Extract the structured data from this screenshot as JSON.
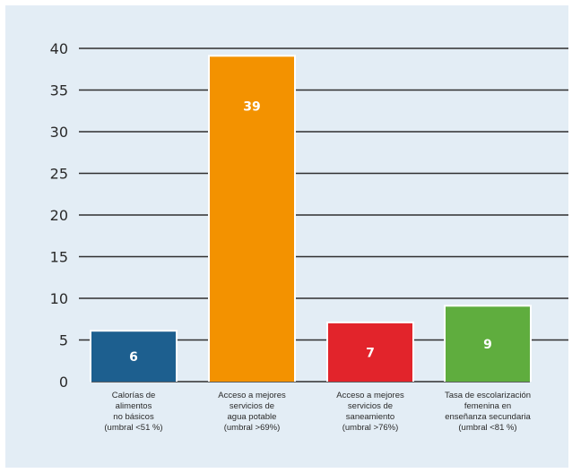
{
  "chart_data": {
    "type": "bar",
    "categories": [
      [
        "Calorías de",
        "alimentos",
        "no básicos",
        "(umbral <51 %)"
      ],
      [
        "Acceso a mejores",
        "servicios de",
        "agua potable",
        "(umbral >69%)"
      ],
      [
        "Acceso a mejores",
        "servicios de",
        "saneamiento",
        "(umbral >76%)"
      ],
      [
        "Tasa de escolarización",
        "femenina en",
        "enseñanza secundaria",
        "(umbral <81 %)"
      ]
    ],
    "values": [
      6,
      39,
      7,
      9
    ],
    "data_labels": [
      "6",
      "39",
      "7",
      "9"
    ],
    "bar_colors": [
      "#1d5f8f",
      "#f39200",
      "#e2242b",
      "#5fad3e"
    ],
    "ylim": [
      0,
      40
    ],
    "yticks": [
      0,
      5,
      10,
      15,
      20,
      25,
      30,
      35,
      40
    ],
    "title": "",
    "xlabel": "",
    "ylabel": "",
    "grid": true,
    "legend": "none"
  },
  "colors": {
    "background": "#e3edf5",
    "gridline": "#2f2f2f"
  }
}
